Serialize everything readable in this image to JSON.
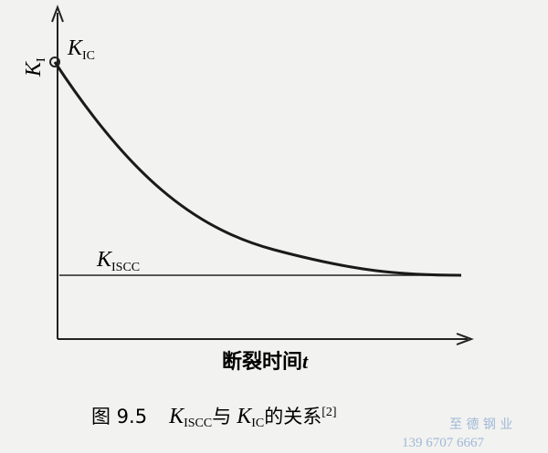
{
  "axes": {
    "y_label": {
      "symbol": "K",
      "subscript": "I"
    },
    "x_label": {
      "text": "断裂时间",
      "variable": "t"
    }
  },
  "annotations": {
    "kic": {
      "symbol": "K",
      "subscript": "IC"
    },
    "kiscc": {
      "symbol": "K",
      "subscript": "ISCC"
    }
  },
  "caption": {
    "number": "图 9.5",
    "k1": "K",
    "s1": "ISCC",
    "mid": "与",
    "k2": "K",
    "s2": "IC",
    "end": "的关系",
    "ref": "[2]"
  },
  "watermark": {
    "company": "至 德 钢 业",
    "phone": "139 6707 6667"
  }
}
